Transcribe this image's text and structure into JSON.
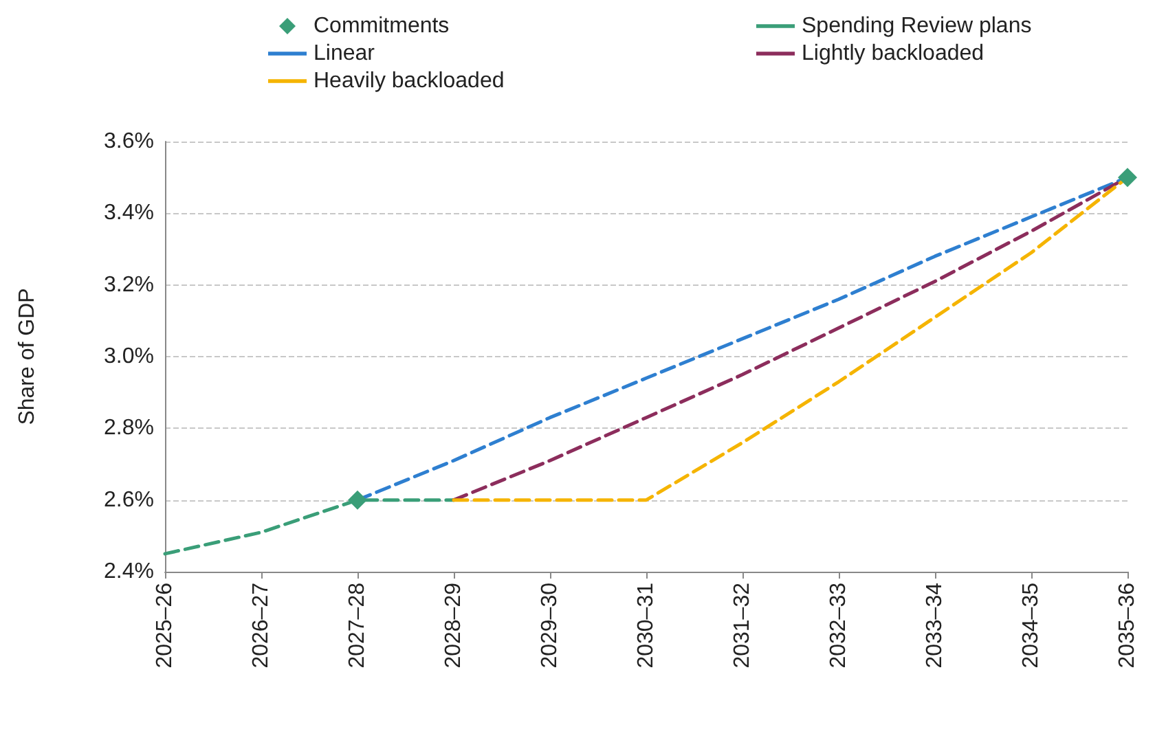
{
  "chart_data": {
    "type": "line",
    "ylabel": "Share of GDP",
    "categories": [
      "2025–26",
      "2026–27",
      "2027–28",
      "2028–29",
      "2029–30",
      "2030–31",
      "2031–32",
      "2032–33",
      "2033–34",
      "2034–35",
      "2035–36"
    ],
    "series": [
      {
        "name": "Commitments",
        "type": "scatter",
        "marker": "diamond",
        "color": "#3a9e78",
        "values": [
          null,
          null,
          2.6,
          null,
          null,
          null,
          null,
          null,
          null,
          null,
          3.5
        ]
      },
      {
        "name": "Spending Review plans",
        "color": "#3a9e78",
        "values": [
          2.45,
          2.51,
          2.6,
          2.6,
          null,
          null,
          null,
          null,
          null,
          null,
          null
        ]
      },
      {
        "name": "Linear",
        "color": "#2e7fd0",
        "values": [
          null,
          null,
          2.6,
          2.71,
          2.83,
          2.94,
          3.05,
          3.16,
          3.28,
          3.39,
          3.5
        ]
      },
      {
        "name": "Lightly backloaded",
        "color": "#8c2d5c",
        "values": [
          null,
          null,
          null,
          2.6,
          2.71,
          2.83,
          2.95,
          3.08,
          3.21,
          3.35,
          3.5
        ]
      },
      {
        "name": "Heavily backloaded",
        "color": "#f5b400",
        "values": [
          null,
          null,
          null,
          2.6,
          2.6,
          2.6,
          2.76,
          2.93,
          3.11,
          3.29,
          3.5
        ]
      }
    ],
    "ylim": [
      2.4,
      3.6
    ],
    "yticks": [
      {
        "value": 2.4,
        "label": "2.4%"
      },
      {
        "value": 2.6,
        "label": "2.6%"
      },
      {
        "value": 2.8,
        "label": "2.8%"
      },
      {
        "value": 3.0,
        "label": "3.0%"
      },
      {
        "value": 3.2,
        "label": "3.2%"
      },
      {
        "value": 3.4,
        "label": "3.4%"
      },
      {
        "value": 3.6,
        "label": "3.6%"
      }
    ],
    "grid": "y",
    "legend": "top",
    "line_style": "dashed",
    "marker": "none"
  }
}
